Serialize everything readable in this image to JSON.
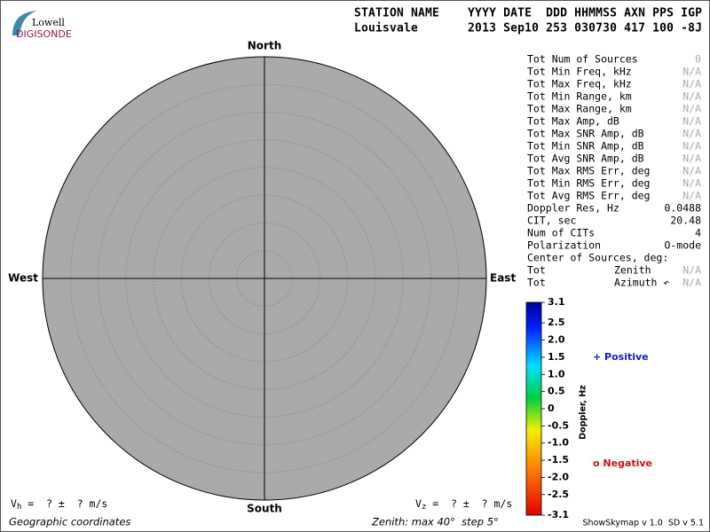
{
  "logo": {
    "top": "Lowell",
    "bottom": "DIGISONDE"
  },
  "header": {
    "columns": "STATION NAME    YYYY DATE  DDD HHMMSS AXN PPS IGP",
    "values": "Louisvale       2013 Sep10 253 030730 417 100 -8J"
  },
  "skymap": {
    "north": "North",
    "south": "South",
    "west": "West",
    "east": "East",
    "vh": {
      "symbol": "V",
      "sub": "h",
      "text": " =  ? ±  ? m/s"
    },
    "vz": {
      "symbol": "V",
      "sub": "z",
      "text": " =  ? ±  ? m/s"
    },
    "coordinates": "Geographic coordinates",
    "zenith": "Zenith: max 40°  step 5°"
  },
  "stats": [
    {
      "label": "Tot Num of Sources",
      "value": "0",
      "color": "#aaaaaa"
    },
    {
      "label": "Tot Min Freq, kHz",
      "value": "N/A",
      "color": "#aaaaaa"
    },
    {
      "label": "Tot Max Freq, kHz",
      "value": "N/A",
      "color": "#aaaaaa"
    },
    {
      "label": "Tot Min Range, km",
      "value": "N/A",
      "color": "#aaaaaa"
    },
    {
      "label": "Tot Max Range, km",
      "value": "N/A",
      "color": "#aaaaaa"
    },
    {
      "label": "Tot Max Amp, dB",
      "value": "N/A",
      "color": "#aaaaaa"
    },
    {
      "label": "Tot Max SNR Amp, dB",
      "value": "N/A",
      "color": "#aaaaaa"
    },
    {
      "label": "Tot Min SNR Amp, dB",
      "value": "N/A",
      "color": "#aaaaaa"
    },
    {
      "label": "Tot Avg SNR Amp, dB",
      "value": "N/A",
      "color": "#aaaaaa"
    },
    {
      "label": "Tot Max RMS Err, deg",
      "value": "N/A",
      "color": "#aaaaaa"
    },
    {
      "label": "Tot Min RMS Err, deg",
      "value": "N/A",
      "color": "#aaaaaa"
    },
    {
      "label": "Tot Avg RMS Err, deg",
      "value": "N/A",
      "color": "#aaaaaa"
    },
    {
      "label": "Doppler Res, Hz",
      "value": "0.0488",
      "color": "#000000"
    },
    {
      "label": "CIT, sec",
      "value": "20.48",
      "color": "#000000"
    },
    {
      "label": "Num of CITs",
      "value": "4",
      "color": "#000000"
    },
    {
      "label": "Polarization",
      "value": "O-mode",
      "color": "#000000"
    }
  ],
  "center": {
    "title": "Center of Sources, deg:",
    "rows": [
      {
        "prefix": "Tot",
        "label": "Zenith",
        "value": "N/A",
        "color": "#aaaaaa"
      },
      {
        "prefix": "Tot",
        "label": "Azimuth ↶",
        "value": "N/A",
        "color": "#aaaaaa"
      }
    ]
  },
  "colorbar": {
    "title": "Doppler, Hz",
    "ticks": [
      3.1,
      2.5,
      {
        "value": 2,
        "label": "2.0"
      },
      1.5,
      {
        "value": 1,
        "label": "1.0"
      },
      0.5,
      0,
      -0.5,
      {
        "value": -1,
        "label": "-1.0"
      },
      -1.5,
      {
        "value": -2,
        "label": "-2.0"
      },
      -2.5,
      -3.1
    ]
  },
  "legend": {
    "positive": "+ Positive",
    "negative": "o Negative"
  },
  "footer": "ShowSkymap v 1.0  SD v 5.1"
}
